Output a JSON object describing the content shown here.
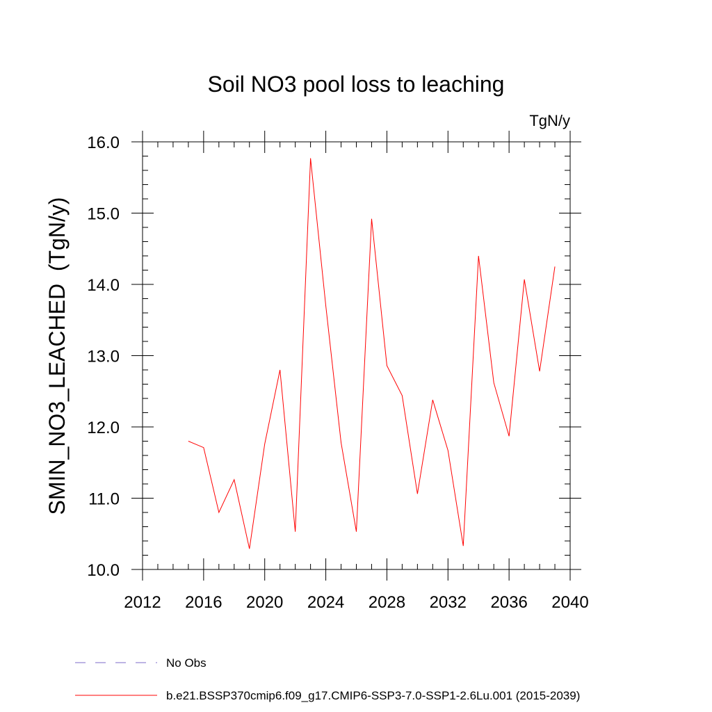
{
  "chart_data": {
    "type": "line",
    "title": "Soil NO3 pool loss to leaching",
    "units_label": "TgN/y",
    "ylabel": "SMIN_NO3_LEACHED  (TgN/y)",
    "xlabel": "",
    "xlim": [
      2012,
      2040
    ],
    "ylim": [
      10.0,
      16.0
    ],
    "x_ticks": [
      "2012",
      "2016",
      "2020",
      "2024",
      "2028",
      "2032",
      "2036",
      "2040"
    ],
    "y_ticks": [
      "10.0",
      "11.0",
      "12.0",
      "13.0",
      "14.0",
      "15.0",
      "16.0"
    ],
    "x_tick_values": [
      2012,
      2016,
      2020,
      2024,
      2028,
      2032,
      2036,
      2040
    ],
    "y_tick_values": [
      10,
      11,
      12,
      13,
      14,
      15,
      16
    ],
    "series": [
      {
        "name": "b.e21.BSSP370cmip6.f09_g17.CMIP6-SSP3-7.0-SSP1-2.6Lu.001 (2015-2039)",
        "color": "#ff0000",
        "style": "solid",
        "x": [
          2015,
          2016,
          2017,
          2018,
          2019,
          2020,
          2021,
          2022,
          2023,
          2024,
          2025,
          2026,
          2027,
          2028,
          2029,
          2030,
          2031,
          2032,
          2033,
          2034,
          2035,
          2036,
          2037,
          2038,
          2039
        ],
        "y": [
          11.8,
          11.71,
          10.8,
          11.26,
          10.29,
          11.76,
          12.8,
          10.53,
          15.77,
          13.7,
          11.78,
          10.53,
          14.92,
          12.86,
          12.44,
          11.06,
          12.38,
          11.67,
          10.33,
          14.4,
          12.62,
          11.87,
          14.07,
          12.78,
          14.25
        ]
      }
    ],
    "legend": [
      {
        "label": "No Obs",
        "color": "#7b68c8",
        "style": "dashed"
      },
      {
        "label": "b.e21.BSSP370cmip6.f09_g17.CMIP6-SSP3-7.0-SSP1-2.6Lu.001 (2015-2039)",
        "color": "#ff0000",
        "style": "solid"
      }
    ],
    "legend_position": "bottom-left",
    "grid": false
  }
}
